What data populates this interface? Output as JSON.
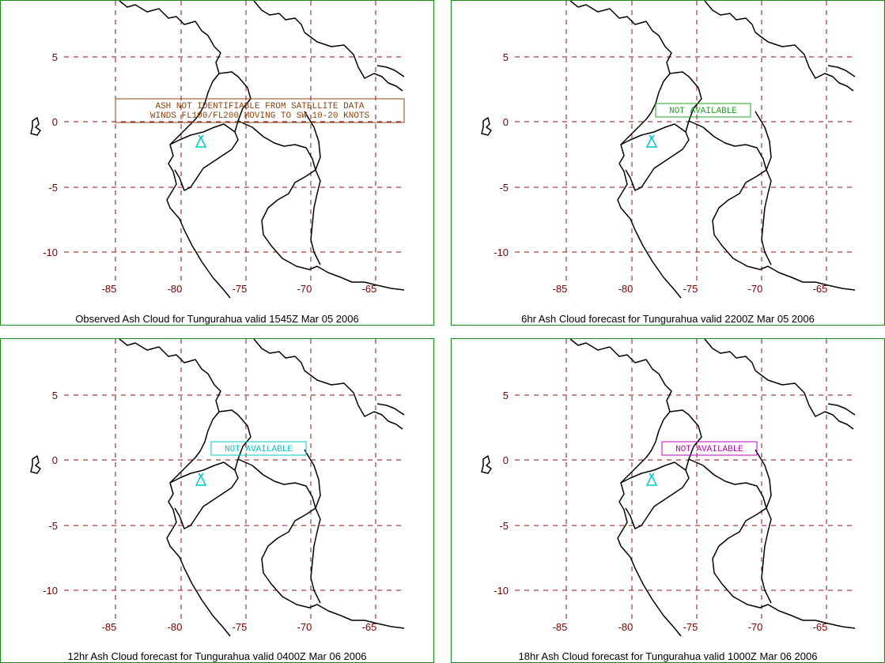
{
  "axes": {
    "x_ticks": [
      "-85",
      "-80",
      "-75",
      "-70",
      "-65"
    ],
    "y_ticks": [
      "5",
      "0",
      "-5",
      "-10"
    ],
    "grid_color": "#8a1010",
    "border_color": "#1a8a1a",
    "volcano_color": "#00c8c8"
  },
  "panels": [
    {
      "title": "Observed Ash Cloud for Tungurahua valid 1545Z Mar 05 2006",
      "message_lines": [
        "ASH NOT IDENTIFIABLE FROM SATELLITE DATA",
        "WINDS FL100/FL200 MOVING TO SW 10-20 KNOTS"
      ],
      "message_color": "#8b4513"
    },
    {
      "title": "6hr Ash Cloud forecast for Tungurahua valid 2200Z Mar 05 2006",
      "message_lines": [
        "NOT AVAILABLE"
      ],
      "message_color": "#1fa51f"
    },
    {
      "title": "12hr Ash Cloud forecast for Tungurahua valid 0400Z Mar 06 2006",
      "message_lines": [
        "NOT AVAILABLE"
      ],
      "message_color": "#00c8c8"
    },
    {
      "title": "18hr Ash Cloud forecast for Tungurahua valid 1000Z Mar 06 2006",
      "message_lines": [
        "NOT AVAILABLE"
      ],
      "message_color": "#c000c0"
    }
  ]
}
